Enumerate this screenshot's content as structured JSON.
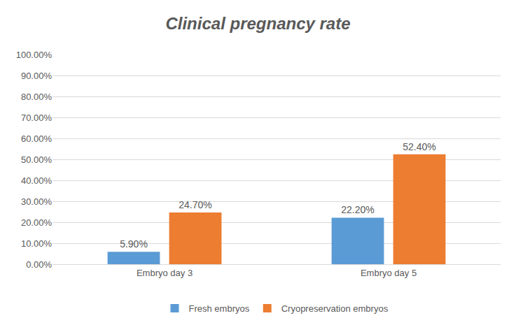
{
  "chart_data": {
    "type": "bar",
    "title": "Clinical pregnancy rate",
    "categories": [
      "Embryo day 3",
      "Embryo day 5"
    ],
    "series": [
      {
        "name": "Fresh embryos",
        "color": "#5b9bd5",
        "values": [
          5.9,
          22.2
        ],
        "value_labels": [
          "5.90%",
          "22.20%"
        ]
      },
      {
        "name": "Cryopreservation embryos",
        "color": "#ed7d31",
        "values": [
          24.7,
          52.4
        ],
        "value_labels": [
          "24.70%",
          "52.40%"
        ]
      }
    ],
    "ylim": [
      0,
      100
    ],
    "yticks": [
      {
        "value": 0,
        "label": "0.00%"
      },
      {
        "value": 10,
        "label": "10.00%"
      },
      {
        "value": 20,
        "label": "20.00%"
      },
      {
        "value": 30,
        "label": "30.00%"
      },
      {
        "value": 40,
        "label": "40.00%"
      },
      {
        "value": 50,
        "label": "50.00%"
      },
      {
        "value": 60,
        "label": "60.00%"
      },
      {
        "value": 70,
        "label": "70.00%"
      },
      {
        "value": 80,
        "label": "80.00%"
      },
      {
        "value": 90,
        "label": "90.00%"
      },
      {
        "value": 100,
        "label": "100.00%"
      }
    ],
    "grid": true,
    "legend": "bottom",
    "data_labels": true
  }
}
